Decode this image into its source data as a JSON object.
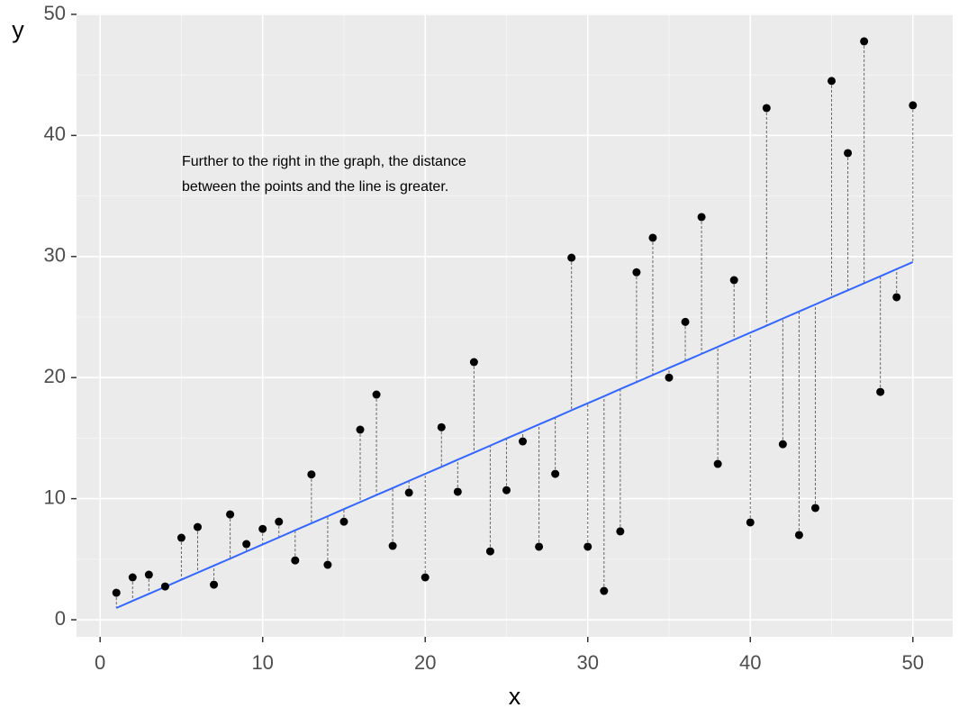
{
  "chart_data": {
    "type": "scatter",
    "xlabel": "x",
    "ylabel": "y",
    "annotation": [
      "Further to the right in the graph, the distance",
      "between the points and the line is greater."
    ],
    "x": [
      1,
      2,
      3,
      4,
      5,
      6,
      7,
      8,
      9,
      10,
      11,
      12,
      13,
      14,
      15,
      16,
      17,
      18,
      19,
      20,
      21,
      22,
      23,
      24,
      25,
      26,
      27,
      28,
      29,
      30,
      31,
      32,
      33,
      34,
      35,
      36,
      37,
      38,
      39,
      40,
      41,
      42,
      43,
      44,
      45,
      46,
      47,
      48,
      49,
      50
    ],
    "values": [
      2.23,
      3.5,
      3.72,
      2.75,
      6.77,
      7.66,
      2.9,
      8.7,
      6.25,
      7.5,
      8.1,
      4.9,
      12.0,
      4.54,
      8.1,
      15.7,
      18.6,
      6.1,
      10.5,
      3.5,
      15.9,
      10.57,
      21.28,
      5.65,
      10.7,
      14.73,
      6.03,
      12.05,
      29.9,
      6.03,
      2.38,
      7.3,
      28.7,
      31.55,
      20.0,
      24.6,
      33.26,
      12.87,
      28.05,
      8.04,
      42.26,
      14.5,
      7.0,
      9.23,
      44.5,
      38.54,
      47.77,
      18.82,
      26.64,
      42.49
    ],
    "color": "#000000",
    "fitted": [
      0.97,
      1.56,
      2.14,
      2.72,
      3.31,
      3.89,
      4.47,
      5.05,
      5.64,
      6.22,
      6.8,
      7.39,
      7.97,
      8.55,
      9.14,
      9.72,
      10.3,
      10.88,
      11.47,
      12.05,
      12.63,
      13.22,
      13.8,
      14.38,
      14.97,
      15.55,
      16.13,
      16.71,
      17.3,
      17.88,
      18.46,
      19.05,
      19.63,
      20.21,
      20.8,
      21.38,
      21.96,
      22.54,
      23.13,
      23.71,
      24.29,
      24.88,
      25.46,
      26.04,
      26.63,
      27.21,
      27.79,
      28.37,
      28.96,
      29.54
    ],
    "line_color": "#3366ff",
    "xlim": [
      -1.45,
      52.45
    ],
    "ylim": [
      -1.41,
      50.07
    ],
    "xticks": [
      0,
      10,
      20,
      30,
      40,
      50
    ],
    "yticks": [
      0,
      10,
      20,
      30,
      40,
      50
    ],
    "grid": true
  }
}
